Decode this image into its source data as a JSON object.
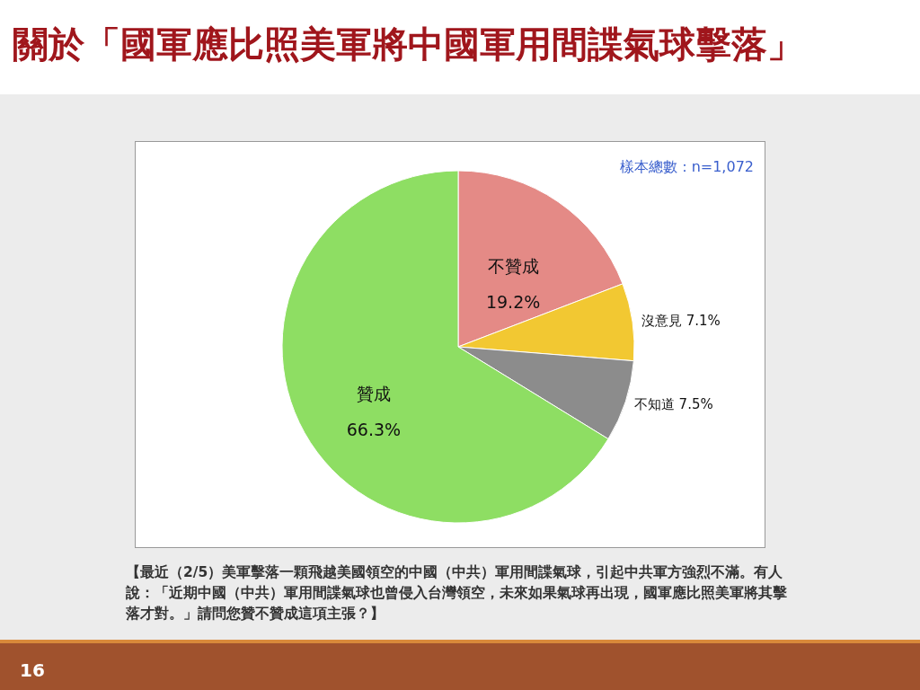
{
  "chart_data": {
    "type": "pie",
    "title": "關於「國軍應比照美軍將中國軍用間諜氣球擊落」",
    "categories": [
      "不贊成",
      "沒意見",
      "不知道",
      "贊成"
    ],
    "values": [
      19.2,
      7.1,
      7.5,
      66.3
    ],
    "value_labels": [
      "19.2%",
      "7.1%",
      "7.5%",
      "66.3%"
    ],
    "colors": [
      "#e48a86",
      "#f2c832",
      "#8c8c8c",
      "#8ede63"
    ],
    "annotations": [
      "樣本總數：n=1,072",
      "【最近（2/5）美軍擊落一顆飛越美國領空的中國（中共）軍用間諜氣球，引起中共軍方強烈不滿。有人說：「近期中國（中共）軍用間諜氣球也曾侵入台灣領空，未來如果氣球再出現，國軍應比照美軍將其擊落才對。」請問您贊不贊成這項主張？】",
      "16"
    ]
  }
}
